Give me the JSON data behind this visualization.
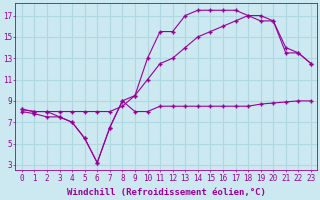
{
  "background_color": "#cce8f0",
  "grid_color": "#b0d8e0",
  "line_color": "#990099",
  "marker": "+",
  "xlabel": "Windchill (Refroidissement éolien,°C)",
  "xlabel_fontsize": 6.5,
  "tick_fontsize": 5.5,
  "xlim": [
    -0.5,
    23.5
  ],
  "ylim": [
    2.5,
    18.2
  ],
  "xticks": [
    0,
    1,
    2,
    3,
    4,
    5,
    6,
    7,
    8,
    9,
    10,
    11,
    12,
    13,
    14,
    15,
    16,
    17,
    18,
    19,
    20,
    21,
    22,
    23
  ],
  "yticks": [
    3,
    5,
    7,
    9,
    11,
    13,
    15,
    17
  ],
  "series1_x": [
    0,
    1,
    2,
    3,
    4,
    5,
    6,
    7,
    8,
    9,
    10,
    11,
    12,
    13,
    14,
    15,
    16,
    17,
    18,
    19,
    20,
    21,
    22,
    23
  ],
  "series1_y": [
    8.0,
    7.8,
    7.5,
    7.5,
    7.0,
    5.5,
    3.2,
    6.5,
    9.0,
    8.0,
    8.0,
    8.5,
    8.5,
    8.5,
    8.5,
    8.5,
    8.5,
    8.5,
    8.5,
    8.7,
    8.8,
    8.9,
    9.0,
    9.0
  ],
  "series2_x": [
    0,
    1,
    2,
    3,
    4,
    5,
    6,
    7,
    8,
    9,
    10,
    11,
    12,
    13,
    14,
    15,
    16,
    17,
    18,
    19,
    20,
    21,
    22,
    23
  ],
  "series2_y": [
    8.2,
    8.0,
    8.0,
    8.0,
    8.0,
    8.0,
    8.0,
    8.0,
    8.5,
    9.5,
    11.0,
    12.5,
    13.0,
    14.0,
    15.0,
    15.5,
    16.0,
    16.5,
    17.0,
    17.0,
    16.5,
    13.5,
    13.5,
    12.5
  ],
  "series3_x": [
    0,
    1,
    2,
    3,
    4,
    5,
    6,
    7,
    8,
    9,
    10,
    11,
    12,
    13,
    14,
    15,
    16,
    17,
    18,
    19,
    20,
    21,
    22,
    23
  ],
  "series3_y": [
    8.2,
    8.0,
    8.0,
    7.5,
    7.0,
    5.5,
    3.2,
    6.5,
    9.0,
    9.5,
    13.0,
    15.5,
    15.5,
    17.0,
    17.5,
    17.5,
    17.5,
    17.5,
    17.0,
    16.5,
    16.5,
    14.0,
    13.5,
    12.5
  ]
}
